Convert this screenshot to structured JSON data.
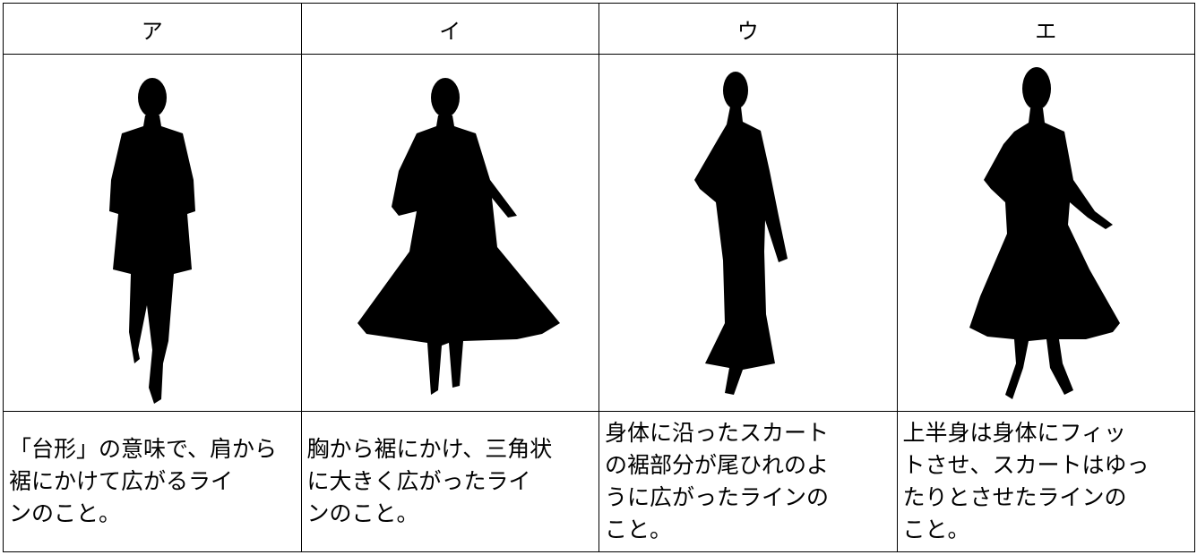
{
  "table": {
    "headers": [
      "ア",
      "イ",
      "ウ",
      "エ"
    ],
    "descriptions": [
      [
        "「台形」の意味で、肩から",
        "裾にかけて広がるライ",
        "ンのこと。"
      ],
      [
        "胸から裾にかけ、三角状",
        "に大きく広がったライ",
        "ンのこと。"
      ],
      [
        "身体に沿ったスカート",
        "の裾部分が尾ひれのよ",
        "うに広がったラインの",
        "こと。"
      ],
      [
        "上半身は身体にフィッ",
        "トさせ、スカートはゆっ",
        "たりとさせたラインの",
        "こと。"
      ]
    ]
  }
}
